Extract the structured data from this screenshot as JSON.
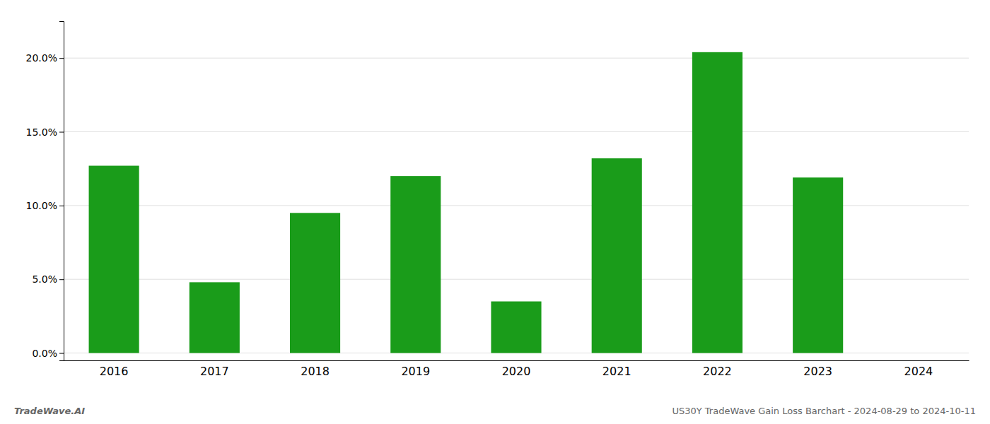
{
  "chart_data": {
    "type": "bar",
    "categories": [
      "2016",
      "2017",
      "2018",
      "2019",
      "2020",
      "2021",
      "2022",
      "2023",
      "2024"
    ],
    "values": [
      0.127,
      0.048,
      0.095,
      0.12,
      0.035,
      0.132,
      0.204,
      0.119,
      0.0
    ],
    "color": "#1a9c1a",
    "ylim": [
      -0.005,
      0.225
    ],
    "yticks": [
      {
        "value": 0.0,
        "label": "0.0%"
      },
      {
        "value": 0.05,
        "label": "5.0%"
      },
      {
        "value": 0.1,
        "label": "10.0%"
      },
      {
        "value": 0.15,
        "label": "15.0%"
      },
      {
        "value": 0.2,
        "label": "20.0%"
      }
    ],
    "grid": true,
    "annotations": [
      "TradeWave.AI",
      "US30Y TradeWave Gain Loss Barchart - 2024-08-29 to 2024-10-11"
    ]
  }
}
